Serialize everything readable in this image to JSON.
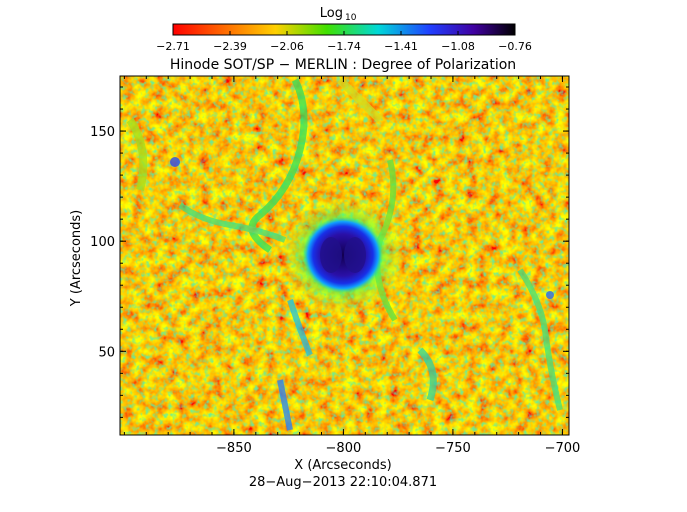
{
  "colorbar": {
    "label": "Log",
    "label_subscript": "10",
    "tick_labels": [
      "−2.71",
      "−2.39",
      "−2.06",
      "−1.74",
      "−1.41",
      "−1.08",
      "−0.76"
    ],
    "range": [
      -2.71,
      -0.76
    ],
    "colormap": "rainbow (red → orange → yellow → green → cyan → blue → violet → black)"
  },
  "title": "Hinode SOT/SP − MERLIN : Degree of Polarization",
  "x_axis": {
    "label": "X (Arcseconds)",
    "tick_labels": [
      "−850",
      "−800",
      "−750",
      "−700"
    ],
    "ticks": [
      -850,
      -800,
      -750,
      -700
    ],
    "range": [
      -902,
      -697
    ]
  },
  "y_axis": {
    "label": "Y (Arcseconds)",
    "tick_labels": [
      "50",
      "100",
      "150"
    ],
    "ticks": [
      50,
      100,
      150
    ],
    "range": [
      12,
      175
    ]
  },
  "timestamp": "28−Aug−2013 22:10:04.871",
  "image": {
    "description_keywords": [
      "sunspot",
      "degree of polarization map"
    ],
    "features": {
      "sunspot_center_arcsec": [
        -798,
        98
      ],
      "sunspot_radius_arcsec": 16
    },
    "background_color": "#ff2a00"
  }
}
